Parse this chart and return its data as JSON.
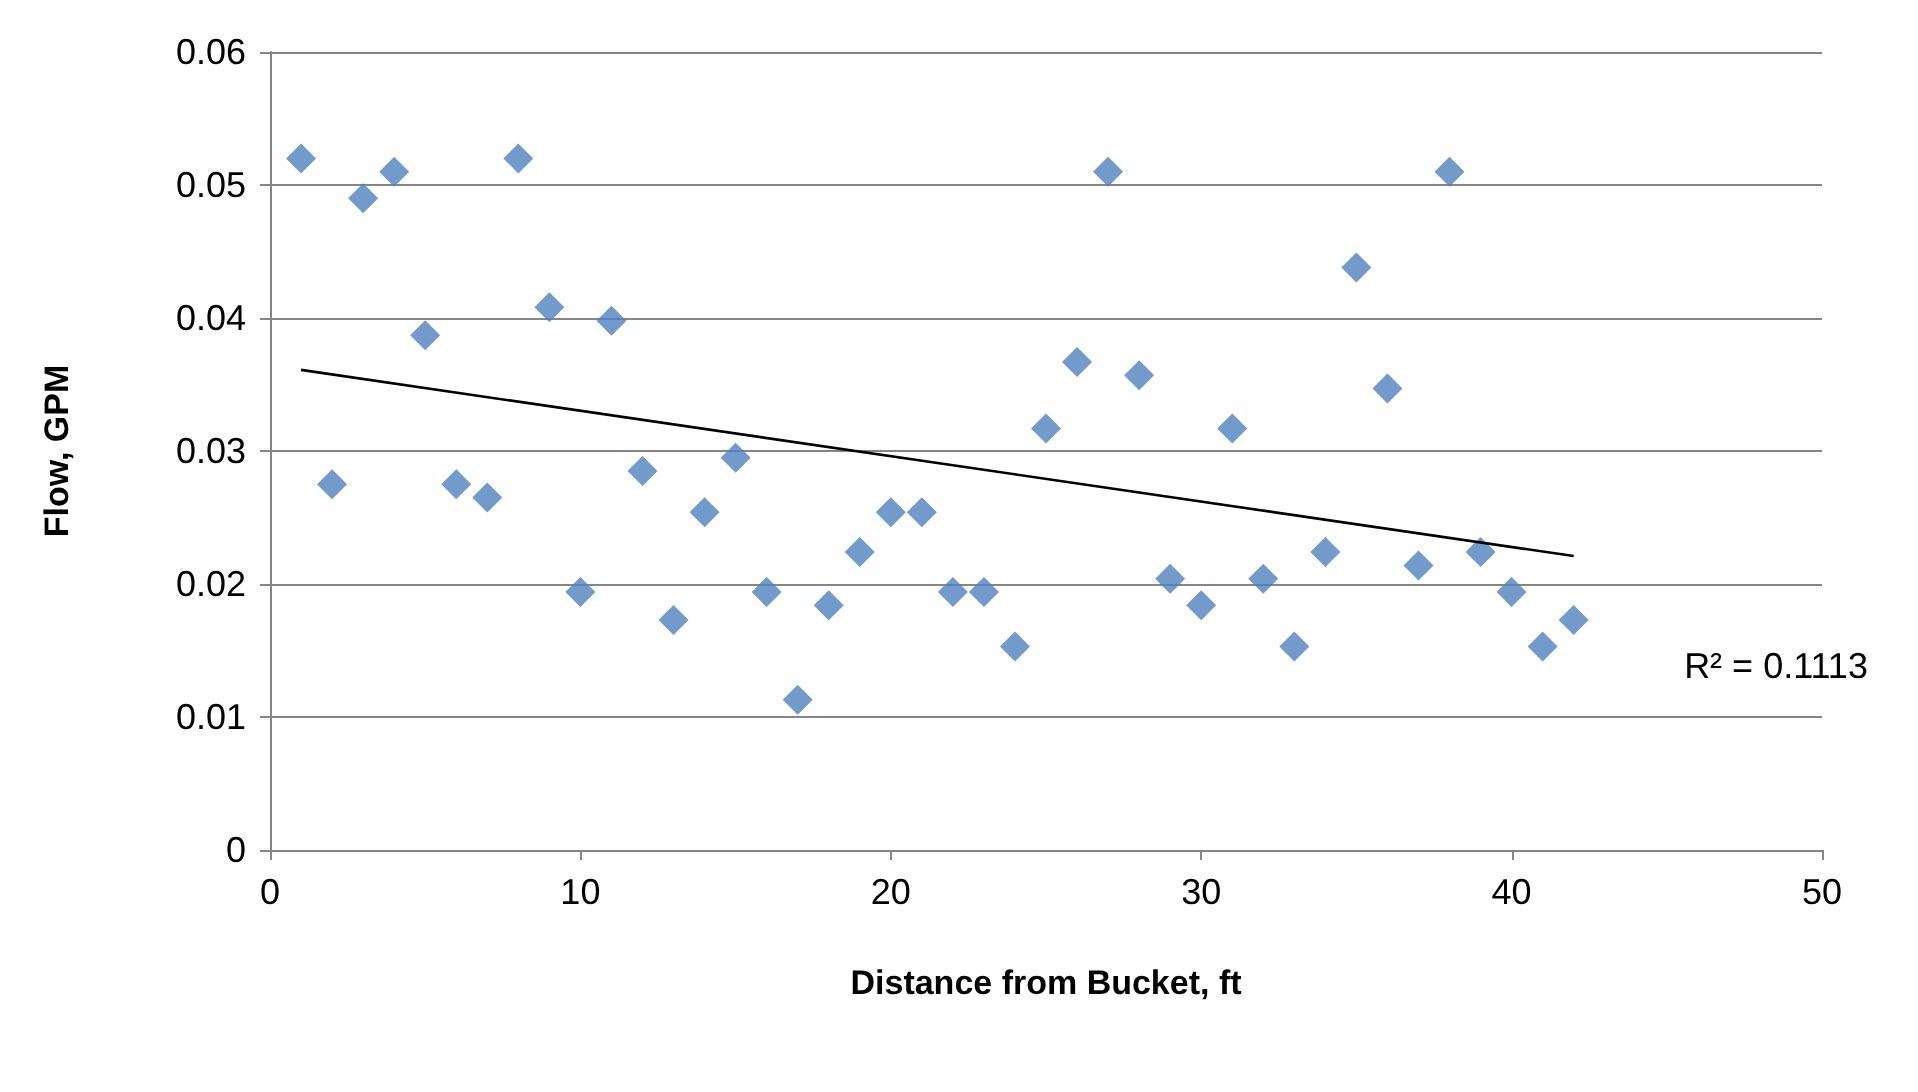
{
  "chart_data": {
    "type": "scatter",
    "xlabel": "Distance from Bucket, ft",
    "ylabel": "Flow, GPM",
    "x": [
      1,
      2,
      3,
      4,
      5,
      6,
      7,
      8,
      9,
      10,
      11,
      12,
      13,
      14,
      15,
      16,
      17,
      18,
      19,
      20,
      21,
      22,
      23,
      24,
      25,
      26,
      27,
      28,
      29,
      30,
      31,
      32,
      33,
      34,
      35,
      36,
      37,
      38,
      39,
      40,
      41,
      42
    ],
    "series": [
      {
        "color": "#4f81bd",
        "marker": "diamond",
        "values": [
          0.052,
          0.0275,
          0.049,
          0.051,
          0.0387,
          0.0275,
          0.0265,
          0.052,
          0.0408,
          0.0194,
          0.0398,
          0.0285,
          0.0173,
          0.0254,
          0.0295,
          0.0194,
          0.0113,
          0.0184,
          0.0224,
          0.0254,
          0.0254,
          0.0194,
          0.0194,
          0.0153,
          0.0317,
          0.0367,
          0.051,
          0.0357,
          0.0204,
          0.0184,
          0.0317,
          0.0204,
          0.0153,
          0.0224,
          0.0438,
          0.0347,
          0.0214,
          0.051,
          0.0224,
          0.0194,
          0.0153,
          0.0173
        ]
      },
      {
        "type": "line",
        "color": "#000000",
        "marker": "none",
        "x": [
          1,
          42
        ],
        "values": [
          0.0361,
          0.0221
        ]
      }
    ],
    "annotations": [
      "R² = 0.1113"
    ],
    "xlim": [
      0,
      50
    ],
    "xticks": [
      0,
      10,
      20,
      30,
      40,
      50
    ],
    "ylim": [
      0,
      0.06
    ],
    "yticks": [
      0,
      0.01,
      0.02,
      0.03,
      0.04,
      0.05,
      0.06
    ],
    "grid": "y"
  }
}
